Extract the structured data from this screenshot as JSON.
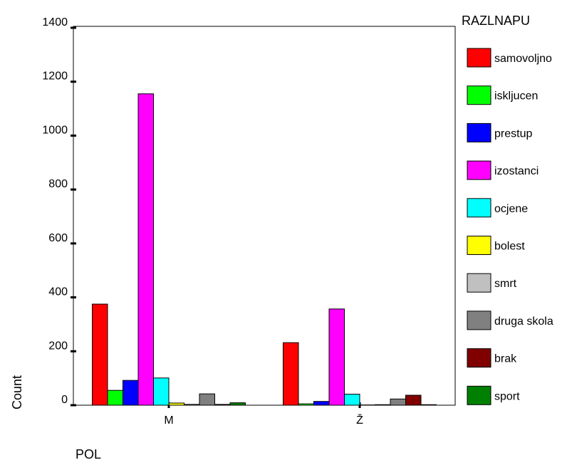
{
  "chart_data": {
    "type": "bar",
    "xlabel": "POL",
    "ylabel": "Count",
    "ylim": [
      0,
      1400
    ],
    "yticks": [
      0,
      200,
      400,
      600,
      800,
      1000,
      1200,
      1400
    ],
    "categories": [
      "M",
      "Ž"
    ],
    "legend_title": "RAZLNAPU",
    "legend_position": "right",
    "grid": false,
    "series": [
      {
        "name": "samovoljno",
        "color": "#ff0000",
        "values": [
          375,
          232
        ]
      },
      {
        "name": "iskljucen",
        "color": "#00ff00",
        "values": [
          55,
          5
        ]
      },
      {
        "name": "prestup",
        "color": "#0000ff",
        "values": [
          92,
          14
        ]
      },
      {
        "name": "izostanci",
        "color": "#ff00ff",
        "values": [
          1155,
          357
        ]
      },
      {
        "name": "ocjene",
        "color": "#00ffff",
        "values": [
          101,
          41
        ]
      },
      {
        "name": "bolest",
        "color": "#ffff00",
        "values": [
          8,
          1
        ]
      },
      {
        "name": "smrt",
        "color": "#c0c0c0",
        "values": [
          3,
          2
        ]
      },
      {
        "name": "druga skola",
        "color": "#808080",
        "values": [
          42,
          23
        ]
      },
      {
        "name": "brak",
        "color": "#800000",
        "values": [
          3,
          37
        ]
      },
      {
        "name": "sport",
        "color": "#008000",
        "values": [
          9,
          2
        ]
      }
    ]
  }
}
